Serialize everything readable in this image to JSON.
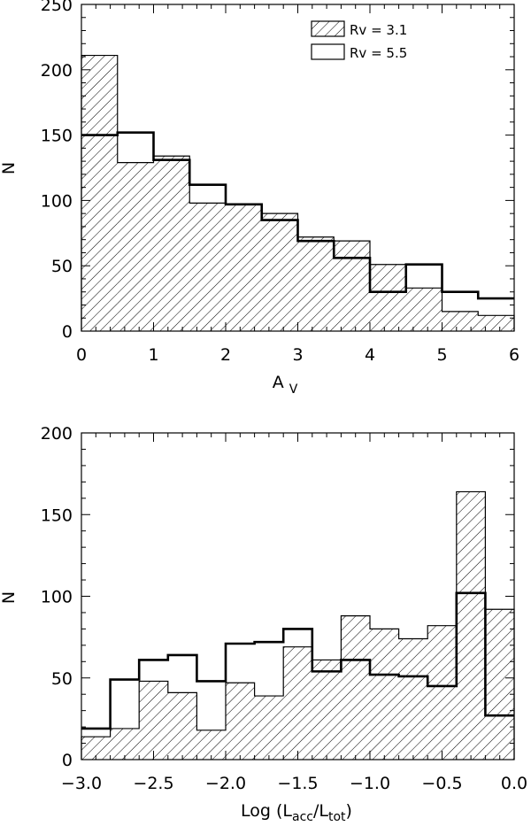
{
  "chart_data": [
    {
      "type": "bar",
      "subtype": "step-histogram",
      "xlabel": "A",
      "xlabel_sub": "V",
      "ylabel": "N",
      "xlim": [
        0,
        6
      ],
      "ylim": [
        0,
        250
      ],
      "xticks": [
        "0",
        "1",
        "2",
        "3",
        "4",
        "5",
        "6"
      ],
      "yticks": [
        "0",
        "50",
        "100",
        "150",
        "200",
        "250"
      ],
      "bin_edges": [
        0,
        0.5,
        1.0,
        1.5,
        2.0,
        2.5,
        3.0,
        3.5,
        4.0,
        4.5,
        5.0,
        5.5,
        6.0
      ],
      "legend_position": "top-right",
      "series": [
        {
          "name": "Rv = 3.1",
          "style": "hatched",
          "values": [
            211,
            129,
            134,
            98,
            97,
            90,
            72,
            69,
            51,
            33,
            15,
            12
          ]
        },
        {
          "name": "Rv = 5.5",
          "style": "outline",
          "values": [
            150,
            152,
            131,
            112,
            97,
            85,
            69,
            56,
            30,
            51,
            30,
            25
          ]
        }
      ]
    },
    {
      "type": "bar",
      "subtype": "step-histogram",
      "xlabel": "Log (L",
      "xlabel_sub1": "acc",
      "xlabel_mid": "/L",
      "xlabel_sub2": "tot",
      "xlabel_end": ")",
      "ylabel": "N",
      "xlim": [
        -3.0,
        0.0
      ],
      "ylim": [
        0,
        200
      ],
      "xticks": [
        "−3.0",
        "−2.5",
        "−2.0",
        "−1.5",
        "−1.0",
        "−0.5",
        "0.0"
      ],
      "yticks": [
        "0",
        "50",
        "100",
        "150",
        "200"
      ],
      "bin_edges": [
        -3.0,
        -2.8,
        -2.6,
        -2.4,
        -2.2,
        -2.0,
        -1.8,
        -1.6,
        -1.4,
        -1.2,
        -1.0,
        -0.8,
        -0.6,
        -0.4,
        -0.2,
        0.0
      ],
      "series": [
        {
          "name": "Rv = 3.1",
          "style": "hatched",
          "values": [
            14,
            19,
            48,
            41,
            18,
            47,
            39,
            69,
            61,
            88,
            80,
            74,
            82,
            164,
            92
          ]
        },
        {
          "name": "Rv = 5.5",
          "style": "outline",
          "values": [
            19,
            49,
            61,
            64,
            48,
            71,
            72,
            80,
            54,
            61,
            52,
            51,
            45,
            102,
            27
          ]
        }
      ]
    }
  ]
}
